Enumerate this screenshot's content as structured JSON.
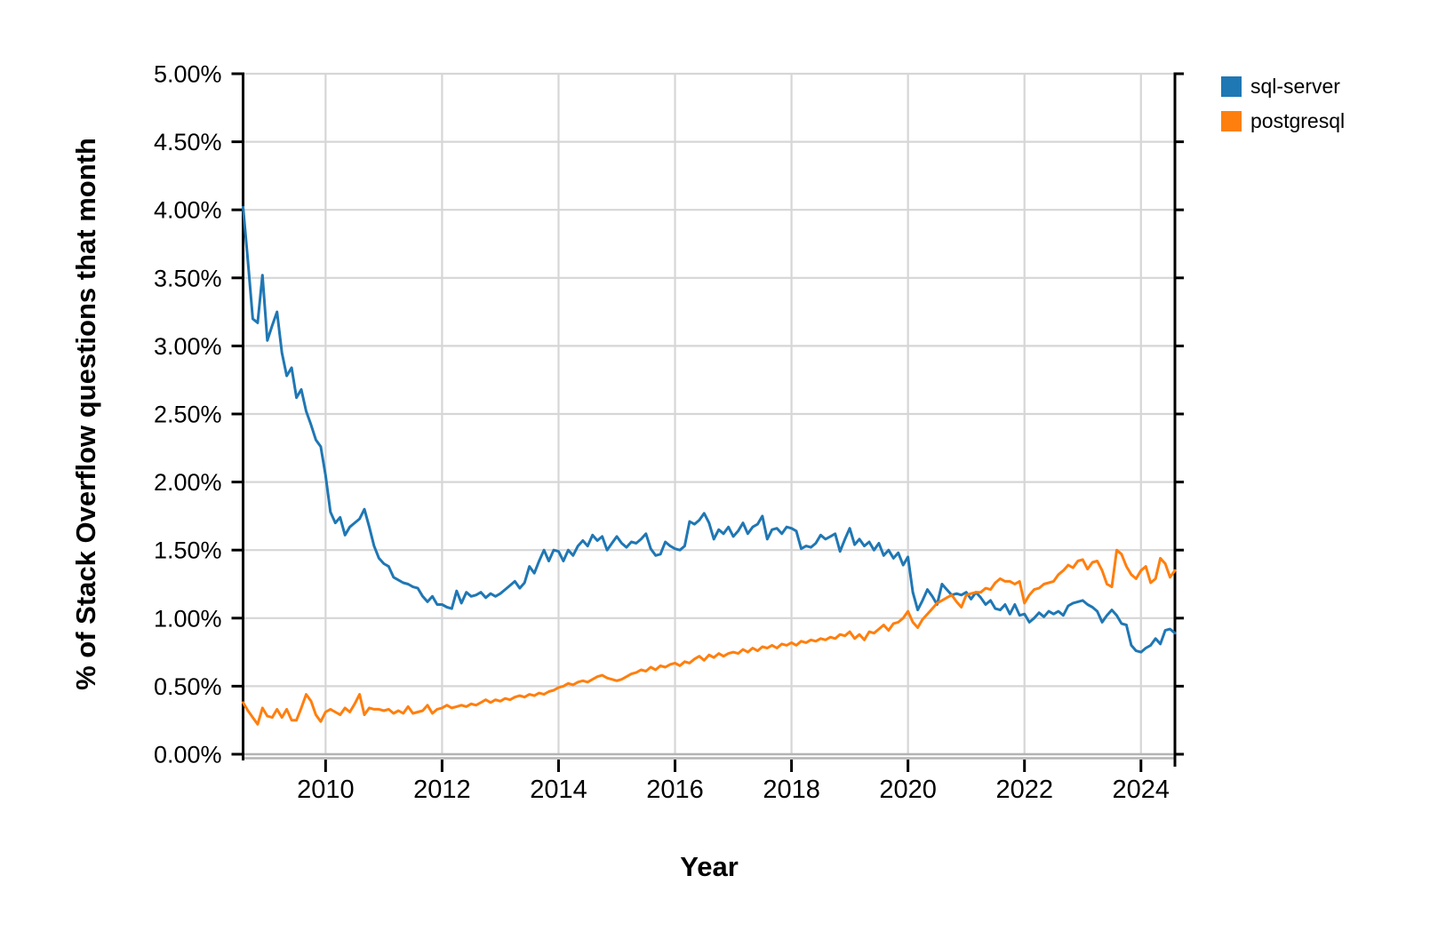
{
  "axes": {
    "x_title": "Year",
    "y_title": "% of Stack Overflow questions that month"
  },
  "legend": {
    "items": [
      {
        "label": "sql-server",
        "color": "#1F77B4"
      },
      {
        "label": "postgresql",
        "color": "#FF7F0E"
      }
    ]
  },
  "chart_data": {
    "type": "line",
    "title": "",
    "xlabel": "Year",
    "ylabel": "% of Stack Overflow questions that month",
    "frequency": "monthly",
    "x_start": "2008-08",
    "x_end": "2024-08",
    "xlim_decimal_years": [
      2008.5833,
      2024.5833
    ],
    "ylim": [
      0,
      5
    ],
    "grid": true,
    "legend_position": "right-outside-top",
    "x_tick_years": [
      2010,
      2012,
      2014,
      2016,
      2018,
      2020,
      2022,
      2024
    ],
    "y_ticks": [
      0,
      0.5,
      1,
      1.5,
      2,
      2.5,
      3,
      3.5,
      4,
      4.5,
      5
    ],
    "y_tick_labels": [
      "0.00%",
      "0.50%",
      "1.00%",
      "1.50%",
      "2.00%",
      "2.50%",
      "3.00%",
      "3.50%",
      "4.00%",
      "4.50%",
      "5.00%"
    ],
    "colors": {
      "grid": "#d6d6d6",
      "axis": "#000000",
      "bottom_axis": "#b3b3b3"
    },
    "series": [
      {
        "name": "sql-server",
        "color": "#1F77B4",
        "values": [
          4.02,
          3.62,
          3.2,
          3.17,
          3.52,
          3.04,
          3.15,
          3.25,
          2.95,
          2.78,
          2.84,
          2.62,
          2.68,
          2.52,
          2.42,
          2.31,
          2.26,
          2.05,
          1.78,
          1.7,
          1.74,
          1.61,
          1.67,
          1.7,
          1.73,
          1.8,
          1.67,
          1.53,
          1.44,
          1.4,
          1.38,
          1.3,
          1.28,
          1.26,
          1.25,
          1.23,
          1.22,
          1.16,
          1.12,
          1.16,
          1.1,
          1.1,
          1.08,
          1.07,
          1.2,
          1.11,
          1.19,
          1.16,
          1.17,
          1.19,
          1.15,
          1.18,
          1.16,
          1.18,
          1.21,
          1.24,
          1.27,
          1.22,
          1.26,
          1.38,
          1.33,
          1.42,
          1.5,
          1.42,
          1.5,
          1.49,
          1.42,
          1.5,
          1.46,
          1.53,
          1.57,
          1.53,
          1.61,
          1.57,
          1.6,
          1.5,
          1.55,
          1.6,
          1.55,
          1.52,
          1.56,
          1.55,
          1.58,
          1.62,
          1.51,
          1.46,
          1.47,
          1.56,
          1.53,
          1.51,
          1.5,
          1.53,
          1.71,
          1.69,
          1.72,
          1.77,
          1.7,
          1.58,
          1.65,
          1.62,
          1.67,
          1.6,
          1.64,
          1.7,
          1.62,
          1.67,
          1.69,
          1.75,
          1.58,
          1.65,
          1.66,
          1.62,
          1.67,
          1.66,
          1.64,
          1.51,
          1.53,
          1.52,
          1.55,
          1.61,
          1.58,
          1.6,
          1.62,
          1.49,
          1.58,
          1.66,
          1.54,
          1.58,
          1.53,
          1.56,
          1.5,
          1.55,
          1.46,
          1.5,
          1.44,
          1.48,
          1.39,
          1.45,
          1.19,
          1.06,
          1.13,
          1.21,
          1.16,
          1.1,
          1.25,
          1.21,
          1.17,
          1.18,
          1.17,
          1.19,
          1.14,
          1.19,
          1.15,
          1.1,
          1.13,
          1.07,
          1.06,
          1.1,
          1.03,
          1.1,
          1.02,
          1.03,
          0.97,
          1.0,
          1.04,
          1.01,
          1.05,
          1.03,
          1.05,
          1.02,
          1.09,
          1.11,
          1.12,
          1.13,
          1.1,
          1.08,
          1.05,
          0.97,
          1.02,
          1.06,
          1.02,
          0.96,
          0.95,
          0.8,
          0.76,
          0.75,
          0.78,
          0.8,
          0.85,
          0.81,
          0.91,
          0.92,
          0.89
        ]
      },
      {
        "name": "postgresql",
        "color": "#FF7F0E",
        "values": [
          0.38,
          0.32,
          0.27,
          0.22,
          0.34,
          0.28,
          0.27,
          0.33,
          0.27,
          0.33,
          0.25,
          0.25,
          0.34,
          0.44,
          0.39,
          0.29,
          0.24,
          0.31,
          0.33,
          0.31,
          0.29,
          0.34,
          0.31,
          0.37,
          0.44,
          0.29,
          0.34,
          0.33,
          0.33,
          0.32,
          0.33,
          0.3,
          0.32,
          0.3,
          0.35,
          0.3,
          0.31,
          0.32,
          0.36,
          0.3,
          0.33,
          0.34,
          0.36,
          0.34,
          0.35,
          0.36,
          0.35,
          0.37,
          0.36,
          0.38,
          0.4,
          0.38,
          0.4,
          0.39,
          0.41,
          0.4,
          0.42,
          0.43,
          0.42,
          0.44,
          0.43,
          0.45,
          0.44,
          0.46,
          0.47,
          0.49,
          0.5,
          0.52,
          0.51,
          0.53,
          0.54,
          0.53,
          0.55,
          0.57,
          0.58,
          0.56,
          0.55,
          0.54,
          0.55,
          0.57,
          0.59,
          0.6,
          0.62,
          0.61,
          0.64,
          0.62,
          0.65,
          0.64,
          0.66,
          0.67,
          0.65,
          0.68,
          0.67,
          0.7,
          0.72,
          0.69,
          0.73,
          0.71,
          0.74,
          0.72,
          0.74,
          0.75,
          0.74,
          0.77,
          0.75,
          0.78,
          0.76,
          0.79,
          0.78,
          0.8,
          0.78,
          0.81,
          0.8,
          0.82,
          0.8,
          0.83,
          0.82,
          0.84,
          0.83,
          0.85,
          0.84,
          0.86,
          0.85,
          0.88,
          0.87,
          0.9,
          0.85,
          0.88,
          0.84,
          0.9,
          0.89,
          0.92,
          0.95,
          0.91,
          0.96,
          0.97,
          1.0,
          1.05,
          0.97,
          0.93,
          0.99,
          1.03,
          1.07,
          1.11,
          1.13,
          1.15,
          1.17,
          1.12,
          1.08,
          1.17,
          1.18,
          1.19,
          1.19,
          1.22,
          1.21,
          1.26,
          1.29,
          1.27,
          1.27,
          1.25,
          1.27,
          1.11,
          1.17,
          1.21,
          1.22,
          1.25,
          1.26,
          1.27,
          1.32,
          1.35,
          1.39,
          1.37,
          1.42,
          1.43,
          1.36,
          1.41,
          1.42,
          1.35,
          1.25,
          1.23,
          1.5,
          1.47,
          1.38,
          1.32,
          1.29,
          1.35,
          1.38,
          1.26,
          1.29,
          1.44,
          1.4,
          1.3,
          1.35
        ]
      }
    ]
  }
}
